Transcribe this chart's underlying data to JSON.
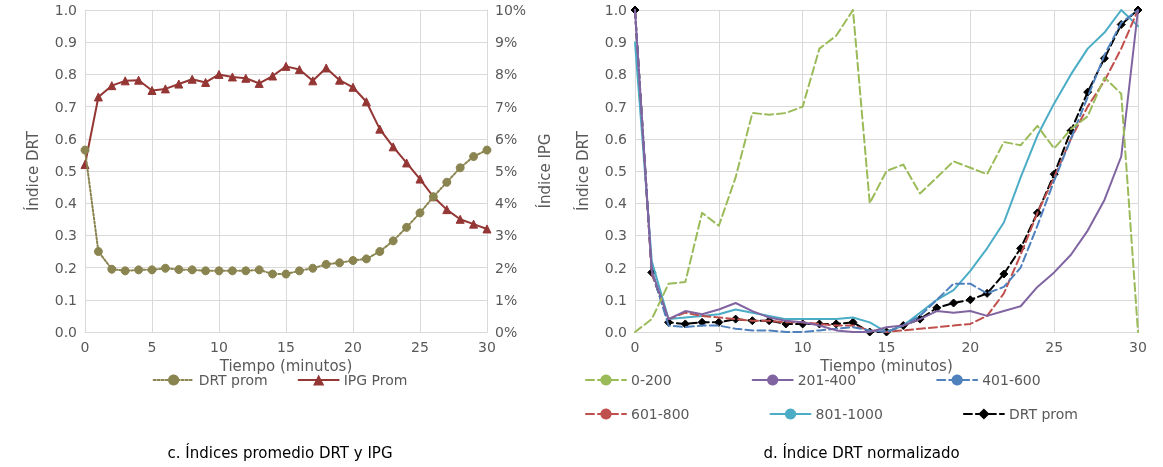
{
  "chart_data": [
    {
      "type": "line",
      "title": "c. Índices promedio DRT y IPG",
      "xlabel": "Tiempo (minutos)",
      "ylabel": "Índice DRT",
      "y2label": "Índice IPG",
      "x": [
        0,
        1,
        2,
        3,
        4,
        5,
        6,
        7,
        8,
        9,
        10,
        11,
        12,
        13,
        14,
        15,
        16,
        17,
        18,
        19,
        20,
        21,
        22,
        23,
        24,
        25,
        26,
        27,
        28,
        29,
        30
      ],
      "xlim": [
        0,
        30
      ],
      "xticks": [
        0,
        5,
        10,
        15,
        20,
        25,
        30
      ],
      "ylim": [
        0,
        1
      ],
      "yticks": [
        {
          "value": 0,
          "label": "0.0"
        },
        {
          "value": 0.1,
          "label": "0.1"
        },
        {
          "value": 0.2,
          "label": "0.2"
        },
        {
          "value": 0.3,
          "label": "0.3"
        },
        {
          "value": 0.4,
          "label": "0.4"
        },
        {
          "value": 0.5,
          "label": "0.5"
        },
        {
          "value": 0.6,
          "label": "0.6"
        },
        {
          "value": 0.7,
          "label": "0.7"
        },
        {
          "value": 0.8,
          "label": "0.8"
        },
        {
          "value": 0.9,
          "label": "0.9"
        },
        {
          "value": 1,
          "label": "1.0"
        }
      ],
      "y2lim": [
        0,
        10
      ],
      "y2ticks": [
        {
          "value": 0,
          "label": "0%"
        },
        {
          "value": 1,
          "label": "1%"
        },
        {
          "value": 2,
          "label": "2%"
        },
        {
          "value": 3,
          "label": "3%"
        },
        {
          "value": 4,
          "label": "4%"
        },
        {
          "value": 5,
          "label": "5%"
        },
        {
          "value": 6,
          "label": "6%"
        },
        {
          "value": 7,
          "label": "7%"
        },
        {
          "value": 8,
          "label": "8%"
        },
        {
          "value": 9,
          "label": "9%"
        },
        {
          "value": 10,
          "label": "10%"
        }
      ],
      "grid": true,
      "legend": "bottom",
      "series": [
        {
          "name": "DRT prom",
          "color": "#8a8450",
          "marker": "circle",
          "line_style": "dotted",
          "values": [
            0.565,
            0.25,
            0.195,
            0.19,
            0.193,
            0.193,
            0.198,
            0.194,
            0.193,
            0.19,
            0.19,
            0.19,
            0.19,
            0.193,
            0.18,
            0.18,
            0.19,
            0.198,
            0.21,
            0.215,
            0.222,
            0.227,
            0.25,
            0.283,
            0.325,
            0.37,
            0.42,
            0.465,
            0.51,
            0.545,
            0.565
          ]
        },
        {
          "name": "IPG Prom",
          "color": "#943634",
          "marker": "triangle",
          "line_style": "solid",
          "axis": "y2",
          "values": [
            5.2,
            7.3,
            7.65,
            7.8,
            7.82,
            7.5,
            7.55,
            7.7,
            7.85,
            7.75,
            8.0,
            7.92,
            7.88,
            7.72,
            7.95,
            8.25,
            8.15,
            7.8,
            8.2,
            7.82,
            7.6,
            7.15,
            6.3,
            5.75,
            5.25,
            4.75,
            4.2,
            3.8,
            3.5,
            3.35,
            3.2
          ]
        }
      ]
    },
    {
      "type": "line",
      "title": "d. Índice DRT normalizado",
      "xlabel": "Tiempo (minutos)",
      "ylabel": "Índice DRT",
      "x": [
        0,
        1,
        2,
        3,
        4,
        5,
        6,
        7,
        8,
        9,
        10,
        11,
        12,
        13,
        14,
        15,
        16,
        17,
        18,
        19,
        20,
        21,
        22,
        23,
        24,
        25,
        26,
        27,
        28,
        29,
        30
      ],
      "xlim": [
        0,
        30
      ],
      "xticks": [
        0,
        5,
        10,
        15,
        20,
        25,
        30
      ],
      "ylim": [
        0,
        1
      ],
      "yticks": [
        {
          "value": 0,
          "label": "0.0"
        },
        {
          "value": 0.1,
          "label": "0.1"
        },
        {
          "value": 0.2,
          "label": "0.2"
        },
        {
          "value": 0.3,
          "label": "0.3"
        },
        {
          "value": 0.4,
          "label": "0.4"
        },
        {
          "value": 0.5,
          "label": "0.5"
        },
        {
          "value": 0.6,
          "label": "0.6"
        },
        {
          "value": 0.7,
          "label": "0.7"
        },
        {
          "value": 0.8,
          "label": "0.8"
        },
        {
          "value": 0.9,
          "label": "0.9"
        },
        {
          "value": 1,
          "label": "1.0"
        }
      ],
      "grid": true,
      "legend": "bottom",
      "series": [
        {
          "name": "0-200",
          "color": "#9bbb59",
          "marker": "none",
          "line_style": "dashed",
          "values": [
            0,
            0.04,
            0.15,
            0.155,
            0.37,
            0.33,
            0.48,
            0.68,
            0.675,
            0.68,
            0.7,
            0.88,
            0.92,
            1.0,
            0.4,
            0.5,
            0.52,
            0.43,
            0.48,
            0.53,
            0.51,
            0.49,
            0.59,
            0.58,
            0.64,
            0.57,
            0.63,
            0.67,
            0.79,
            0.74,
            0
          ]
        },
        {
          "name": "201-400",
          "color": "#8064a2",
          "marker": "none",
          "line_style": "solid",
          "values": [
            1,
            0.19,
            0.04,
            0.065,
            0.055,
            0.07,
            0.09,
            0.065,
            0.045,
            0.035,
            0.03,
            0.02,
            0.005,
            0,
            0,
            0.015,
            0.02,
            0.04,
            0.065,
            0.06,
            0.065,
            0.05,
            0.065,
            0.08,
            0.14,
            0.185,
            0.24,
            0.315,
            0.41,
            0.545,
            1
          ]
        },
        {
          "name": "401-600",
          "color": "#4f81bd",
          "marker": "none",
          "line_style": "dashed",
          "values": [
            1,
            0.19,
            0.02,
            0.015,
            0.02,
            0.02,
            0.01,
            0.005,
            0.005,
            0,
            0,
            0.005,
            0.01,
            0.015,
            0.005,
            0,
            0.02,
            0.05,
            0.1,
            0.15,
            0.15,
            0.12,
            0.14,
            0.2,
            0.33,
            0.47,
            0.6,
            0.73,
            0.86,
            0.96,
            1
          ]
        },
        {
          "name": "601-800",
          "color": "#c0504d",
          "marker": "none",
          "line_style": "dashed",
          "values": [
            1,
            0.18,
            0.04,
            0.06,
            0.05,
            0.045,
            0.04,
            0.035,
            0.035,
            0.03,
            0.03,
            0.025,
            0.02,
            0.02,
            0.005,
            0,
            0.005,
            0.01,
            0.015,
            0.02,
            0.025,
            0.05,
            0.12,
            0.24,
            0.37,
            0.48,
            0.6,
            0.7,
            0.78,
            0.88,
            1
          ]
        },
        {
          "name": "801-1000",
          "color": "#4bacc6",
          "marker": "none",
          "line_style": "solid",
          "values": [
            0.9,
            0.22,
            0.04,
            0.045,
            0.05,
            0.055,
            0.07,
            0.06,
            0.05,
            0.04,
            0.04,
            0.04,
            0.04,
            0.045,
            0.03,
            0,
            0.02,
            0.06,
            0.1,
            0.13,
            0.19,
            0.26,
            0.34,
            0.48,
            0.61,
            0.71,
            0.8,
            0.88,
            0.93,
            1.0,
            0.95
          ]
        },
        {
          "name": "DRT prom",
          "color": "#000000",
          "marker": "diamond",
          "line_style": "dashed",
          "values": [
            1,
            0.185,
            0.03,
            0.025,
            0.03,
            0.03,
            0.04,
            0.035,
            0.035,
            0.025,
            0.025,
            0.025,
            0.025,
            0.03,
            0,
            0,
            0.02,
            0.04,
            0.075,
            0.09,
            0.1,
            0.12,
            0.18,
            0.26,
            0.37,
            0.49,
            0.625,
            0.745,
            0.85,
            0.955,
            1
          ]
        }
      ]
    }
  ]
}
